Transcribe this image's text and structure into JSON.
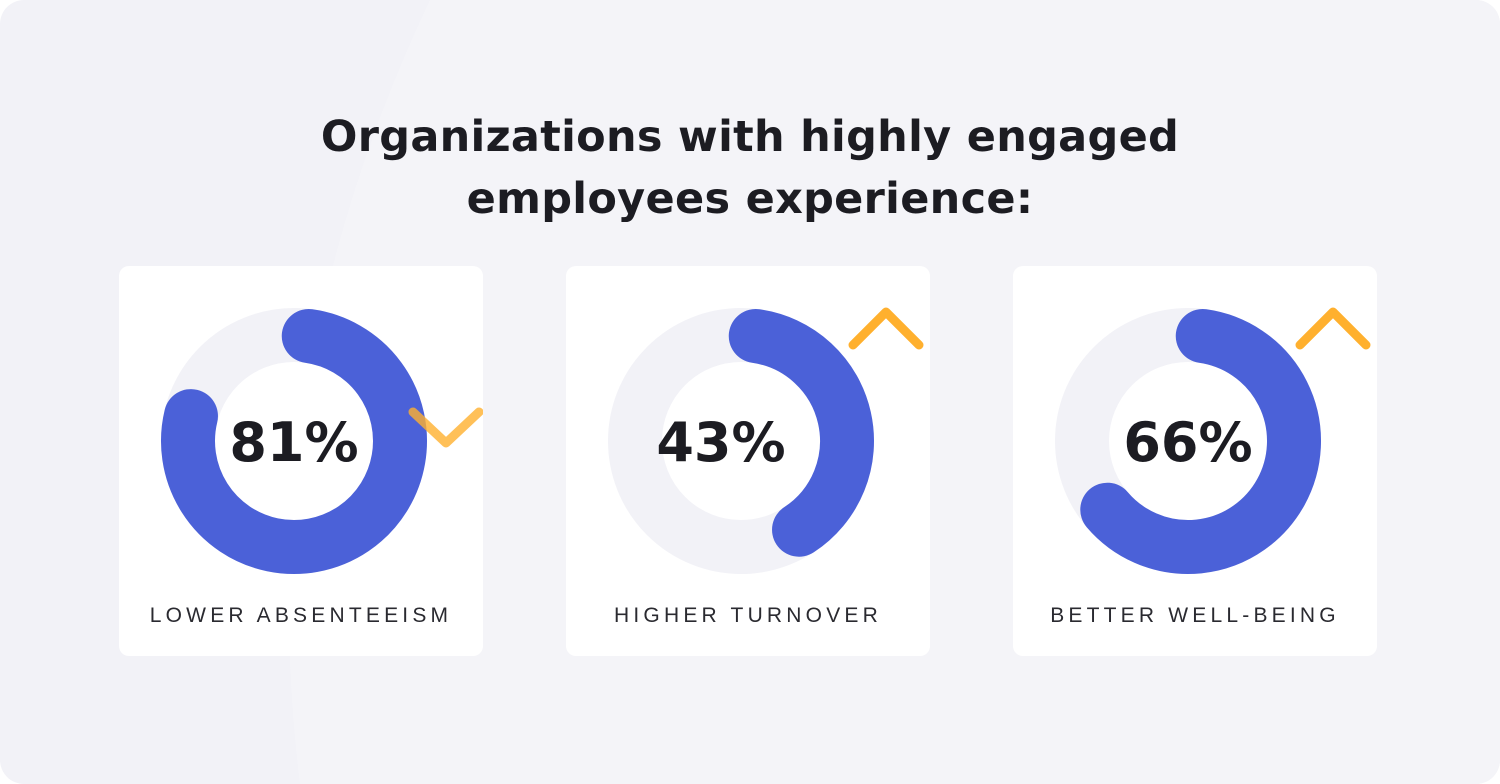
{
  "title": {
    "line1": "Organizations with highly engaged",
    "line2": "employees experience:"
  },
  "chart_data": {
    "type": "donut",
    "categories": [
      "LOWER ABSENTEEISM",
      "HIGHER TURNOVER",
      "BETTER WELL-BEING"
    ],
    "values": [
      81,
      43,
      66
    ],
    "value_labels": [
      "81%",
      "43%",
      "66%"
    ],
    "direction": [
      "down",
      "up",
      "up"
    ],
    "max": 100
  },
  "colors": {
    "ring_fill": "#4b61d8",
    "ring_track": "#f2f2f7",
    "arrow": "#ffb02e",
    "text": "#1c1c22",
    "card": "#ffffff",
    "background": "#f2f2f7"
  },
  "icons": [
    "arrow-down-icon",
    "arrow-up-icon",
    "arrow-up-icon"
  ]
}
